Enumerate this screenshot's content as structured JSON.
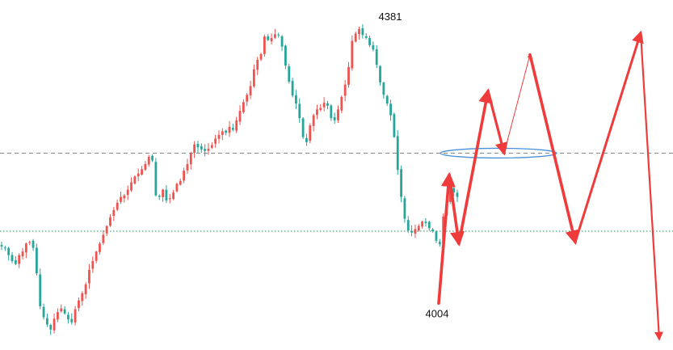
{
  "chart_data": {
    "type": "candlestick",
    "title": "",
    "xlabel": "",
    "ylabel": "",
    "grid": false,
    "legend": "none",
    "ylim": [
      3940,
      4420
    ],
    "colors": {
      "up": "#ef5350",
      "down": "#26a69a",
      "projection": "#ef3b3b",
      "reference_line": "#888888",
      "support_line": "#2e8b57",
      "ellipse": "#4a90d9"
    },
    "annotations": [
      {
        "label": "4381",
        "value": 4381
      },
      {
        "label": "4004",
        "value": 4004
      }
    ],
    "reference_lines": [
      {
        "value": 4210,
        "style": "dashed"
      },
      {
        "value": 4103,
        "style": "dotted"
      }
    ],
    "price_path": [
      4082,
      4080,
      4070,
      4062,
      4058,
      4070,
      4075,
      4086,
      4088,
      4080,
      4045,
      4000,
      3985,
      3975,
      3968,
      3983,
      3992,
      3997,
      3990,
      3982,
      3978,
      3996,
      4008,
      4018,
      4030,
      4050,
      4062,
      4075,
      4086,
      4098,
      4110,
      4122,
      4132,
      4142,
      4150,
      4152,
      4160,
      4170,
      4178,
      4182,
      4188,
      4195,
      4205,
      4200,
      4152,
      4150,
      4160,
      4145,
      4148,
      4156,
      4168,
      4172,
      4186,
      4195,
      4210,
      4222,
      4218,
      4215,
      4213,
      4216,
      4221,
      4230,
      4235,
      4240,
      4238,
      4246,
      4242,
      4255,
      4268,
      4280,
      4290,
      4302,
      4325,
      4338,
      4346,
      4370,
      4365,
      4368,
      4373,
      4372,
      4356,
      4330,
      4308,
      4289,
      4278,
      4258,
      4232,
      4225,
      4248,
      4262,
      4270,
      4272,
      4279,
      4275,
      4258,
      4255,
      4270,
      4287,
      4304,
      4328,
      4364,
      4374,
      4380,
      4372,
      4368,
      4358,
      4352,
      4331,
      4307,
      4290,
      4278,
      4262,
      4232,
      4187,
      4150,
      4120,
      4104,
      4101,
      4106,
      4110,
      4116,
      4114,
      4107,
      4103,
      4090,
      4085,
      4123,
      4142,
      4161,
      4156,
      4150
    ],
    "projection_path": [
      {
        "leg": 1,
        "value": 4004
      },
      {
        "leg": 2,
        "value": 4180
      },
      {
        "leg": 3,
        "value": 4086
      },
      {
        "leg": 4,
        "value": 4295
      },
      {
        "leg": 5,
        "value": 4210
      },
      {
        "leg": 6,
        "value": 4345
      },
      {
        "leg": 7,
        "value": 4088
      },
      {
        "leg": 8,
        "value": 4375
      },
      {
        "leg": 9,
        "value": 3955
      }
    ]
  }
}
